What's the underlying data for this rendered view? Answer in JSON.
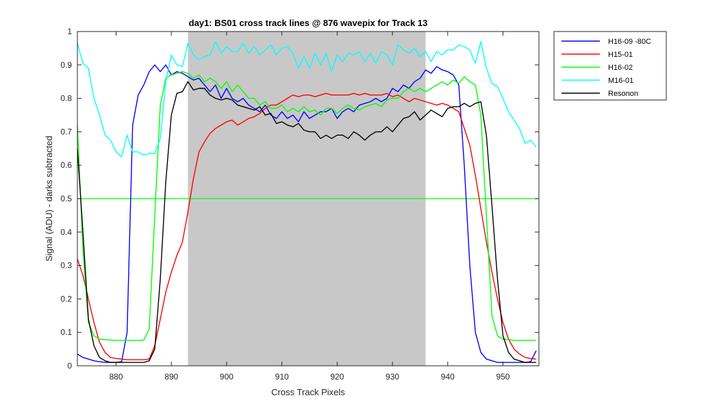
{
  "chart_data": {
    "type": "line",
    "title": "day1: BS01  cross track lines @ 876 wavepix for Track 13",
    "xlabel": "Cross Track Pixels",
    "ylabel": "Signal (ADU) - darks subtracted",
    "xlim": [
      873,
      956.5
    ],
    "ylim": [
      0,
      1
    ],
    "xticks": [
      880,
      890,
      900,
      910,
      920,
      930,
      940,
      950
    ],
    "yticks": [
      0,
      0.1,
      0.2,
      0.3,
      0.4,
      0.5,
      0.6,
      0.7,
      0.8,
      0.9,
      1
    ],
    "ytick_labels": [
      "0",
      "0.1",
      "0.2",
      "0.3",
      "0.4",
      "0.5",
      "0.6",
      "0.7",
      "0.8",
      "0.9",
      "1"
    ],
    "grid": false,
    "legend_placement": "outside-top-right",
    "shaded_region": {
      "x_start": 893,
      "x_end": 936,
      "color": "#c8c8c8"
    },
    "reference_line": {
      "y": 0.5,
      "color": "#00ff00"
    },
    "x": [
      873,
      874,
      875,
      876,
      877,
      878,
      879,
      880,
      881,
      882,
      883,
      884,
      885,
      886,
      887,
      888,
      889,
      890,
      891,
      892,
      893,
      894,
      895,
      896,
      897,
      898,
      899,
      900,
      901,
      902,
      903,
      904,
      905,
      906,
      907,
      908,
      909,
      910,
      911,
      912,
      913,
      914,
      915,
      916,
      917,
      918,
      919,
      920,
      921,
      922,
      923,
      924,
      925,
      926,
      927,
      928,
      929,
      930,
      931,
      932,
      933,
      934,
      935,
      936,
      937,
      938,
      939,
      940,
      941,
      942,
      943,
      944,
      945,
      946,
      947,
      948,
      949,
      950,
      951,
      952,
      953,
      954,
      955,
      956
    ],
    "series": [
      {
        "name": "H16-09 -80C",
        "color": "#0000ff",
        "values": [
          0.035,
          0.025,
          0.02,
          0.015,
          0.012,
          0.01,
          0.01,
          0.01,
          0.012,
          0.1,
          0.72,
          0.81,
          0.84,
          0.88,
          0.9,
          0.88,
          0.9,
          0.87,
          0.88,
          0.875,
          0.865,
          0.855,
          0.86,
          0.84,
          0.82,
          0.84,
          0.8,
          0.83,
          0.8,
          0.79,
          0.8,
          0.78,
          0.77,
          0.76,
          0.78,
          0.75,
          0.74,
          0.76,
          0.74,
          0.75,
          0.73,
          0.76,
          0.74,
          0.75,
          0.76,
          0.76,
          0.77,
          0.74,
          0.76,
          0.77,
          0.76,
          0.78,
          0.785,
          0.79,
          0.8,
          0.79,
          0.8,
          0.83,
          0.82,
          0.84,
          0.83,
          0.85,
          0.86,
          0.885,
          0.875,
          0.895,
          0.885,
          0.88,
          0.87,
          0.84,
          0.6,
          0.3,
          0.1,
          0.04,
          0.02,
          0.015,
          0.01,
          0.01,
          0.01,
          0.01,
          0.01,
          0.01,
          0.012,
          0.045
        ]
      },
      {
        "name": "H15-01",
        "color": "#ff0000",
        "values": [
          0.32,
          0.27,
          0.2,
          0.13,
          0.07,
          0.04,
          0.025,
          0.022,
          0.02,
          0.018,
          0.018,
          0.018,
          0.018,
          0.02,
          0.06,
          0.14,
          0.22,
          0.28,
          0.33,
          0.37,
          0.46,
          0.56,
          0.64,
          0.67,
          0.695,
          0.71,
          0.72,
          0.73,
          0.735,
          0.72,
          0.73,
          0.74,
          0.745,
          0.755,
          0.77,
          0.78,
          0.78,
          0.79,
          0.8,
          0.81,
          0.805,
          0.81,
          0.81,
          0.805,
          0.81,
          0.815,
          0.81,
          0.81,
          0.81,
          0.81,
          0.815,
          0.81,
          0.815,
          0.81,
          0.81,
          0.81,
          0.815,
          0.805,
          0.81,
          0.8,
          0.79,
          0.8,
          0.795,
          0.79,
          0.785,
          0.78,
          0.785,
          0.78,
          0.77,
          0.76,
          0.71,
          0.66,
          0.57,
          0.47,
          0.37,
          0.28,
          0.2,
          0.13,
          0.08,
          0.05,
          0.035,
          0.025,
          0.022,
          0.02
        ]
      },
      {
        "name": "H16-02",
        "color": "#00ff00",
        "values": [
          0.72,
          0.35,
          0.13,
          0.09,
          0.08,
          0.078,
          0.077,
          0.076,
          0.076,
          0.076,
          0.076,
          0.076,
          0.077,
          0.11,
          0.45,
          0.78,
          0.86,
          0.87,
          0.875,
          0.88,
          0.875,
          0.86,
          0.87,
          0.85,
          0.86,
          0.85,
          0.83,
          0.85,
          0.82,
          0.84,
          0.82,
          0.8,
          0.8,
          0.78,
          0.79,
          0.77,
          0.77,
          0.78,
          0.76,
          0.77,
          0.76,
          0.775,
          0.76,
          0.765,
          0.75,
          0.77,
          0.77,
          0.755,
          0.77,
          0.78,
          0.77,
          0.765,
          0.775,
          0.78,
          0.785,
          0.775,
          0.795,
          0.8,
          0.8,
          0.82,
          0.83,
          0.82,
          0.83,
          0.82,
          0.83,
          0.84,
          0.85,
          0.84,
          0.855,
          0.845,
          0.865,
          0.85,
          0.84,
          0.75,
          0.45,
          0.15,
          0.09,
          0.08,
          0.078,
          0.076,
          0.076,
          0.076,
          0.076,
          0.076
        ]
      },
      {
        "name": "M16-01",
        "color": "#00ffff",
        "values": [
          0.965,
          0.905,
          0.89,
          0.8,
          0.75,
          0.69,
          0.675,
          0.64,
          0.625,
          0.69,
          0.64,
          0.64,
          0.63,
          0.635,
          0.635,
          0.68,
          0.85,
          0.93,
          0.9,
          0.895,
          0.965,
          0.93,
          0.915,
          0.925,
          0.93,
          0.97,
          0.935,
          0.955,
          0.94,
          0.94,
          0.965,
          0.935,
          0.955,
          0.93,
          0.945,
          0.96,
          0.93,
          0.95,
          0.955,
          0.935,
          0.89,
          0.925,
          0.89,
          0.935,
          0.9,
          0.935,
          0.88,
          0.93,
          0.91,
          0.935,
          0.93,
          0.94,
          0.91,
          0.935,
          0.905,
          0.94,
          0.93,
          0.9,
          0.96,
          0.945,
          0.935,
          0.95,
          0.925,
          0.94,
          0.91,
          0.94,
          0.93,
          0.945,
          0.945,
          0.96,
          0.955,
          0.945,
          0.905,
          0.97,
          0.89,
          0.845,
          0.835,
          0.8,
          0.76,
          0.735,
          0.71,
          0.665,
          0.675,
          0.655
        ]
      },
      {
        "name": "Resonon",
        "color": "#000000",
        "values": [
          0.65,
          0.4,
          0.14,
          0.06,
          0.025,
          0.015,
          0.01,
          0.01,
          0.01,
          0.01,
          0.01,
          0.01,
          0.01,
          0.015,
          0.05,
          0.26,
          0.55,
          0.75,
          0.815,
          0.82,
          0.85,
          0.825,
          0.83,
          0.83,
          0.81,
          0.8,
          0.795,
          0.8,
          0.795,
          0.78,
          0.775,
          0.77,
          0.765,
          0.775,
          0.75,
          0.755,
          0.725,
          0.73,
          0.72,
          0.715,
          0.725,
          0.705,
          0.7,
          0.7,
          0.68,
          0.69,
          0.68,
          0.69,
          0.69,
          0.68,
          0.7,
          0.69,
          0.675,
          0.69,
          0.7,
          0.7,
          0.715,
          0.7,
          0.72,
          0.74,
          0.745,
          0.76,
          0.735,
          0.75,
          0.765,
          0.755,
          0.745,
          0.77,
          0.775,
          0.775,
          0.785,
          0.775,
          0.785,
          0.79,
          0.69,
          0.48,
          0.26,
          0.09,
          0.04,
          0.02,
          0.015,
          0.01,
          0.01,
          0.01
        ]
      }
    ]
  }
}
